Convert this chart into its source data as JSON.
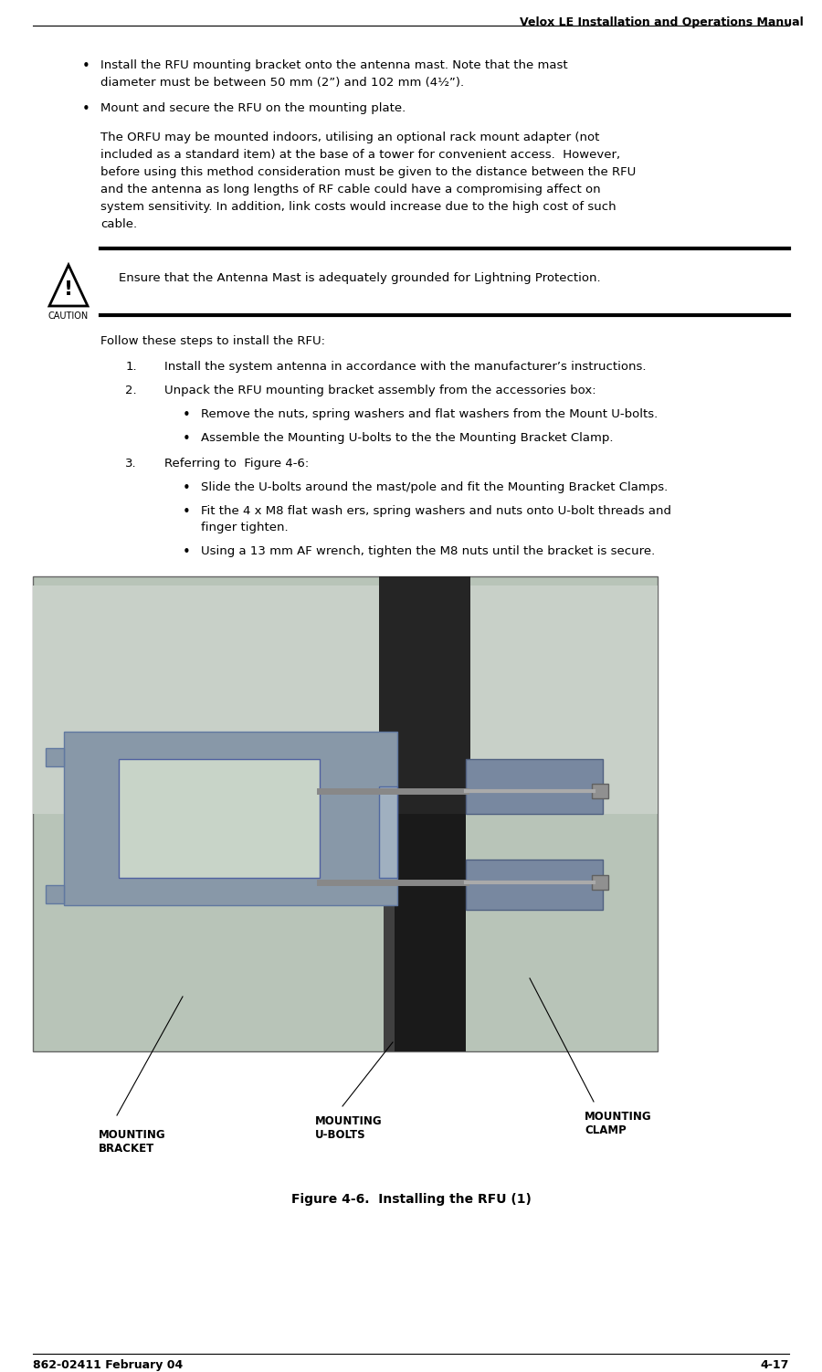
{
  "bg_color": "#ffffff",
  "header_text": "Velox LE Installation and Operations Manual",
  "footer_left": "862-02411 February 04",
  "footer_right": "4-17",
  "body_font_size": 9.5,
  "header_font_size": 9.0,
  "footer_font_size": 9.0,
  "caption_font_size": 10.0,
  "label_font_size": 8.5,
  "bullet1_line1": "Install the RFU mounting bracket onto the antenna mast. Note that the mast",
  "bullet1_line2": "diameter must be between 50 mm (2”) and 102 mm (4½”).",
  "bullet2": "Mount and secure the RFU on the mounting plate.",
  "para1_lines": [
    "The ORFU may be mounted indoors, utilising an optional rack mount adapter (not",
    "included as a standard item) at the base of a tower for convenient access.  However,",
    "before using this method consideration must be given to the distance between the RFU",
    "and the antenna as long lengths of RF cable could have a compromising affect on",
    "system sensitivity. In addition, link costs would increase due to the high cost of such",
    "cable."
  ],
  "caution_text": "Ensure that the Antenna Mast is adequately grounded for Lightning Protection.",
  "follow_text": "Follow these steps to install the RFU:",
  "step1": "Install the system antenna in accordance with the manufacturer’s instructions.",
  "step2_head": "Unpack the RFU mounting bracket assembly from the accessories box:",
  "step2_b1": "Remove the nuts, spring washers and flat washers from the Mount U-bolts.",
  "step2_b2": "Assemble the Mounting U-bolts to the the Mounting Bracket Clamp.",
  "step3_head": "Referring to  Figure 4-6:",
  "step3_b1": "Slide the U-bolts around the mast/pole and fit the Mounting Bracket Clamps.",
  "step3_b2a": "Fit the 4 x M8 flat wash ers, spring washers and nuts onto U-bolt threads and",
  "step3_b2b": "finger tighten.",
  "step3_b3": "Using a 13 mm AF wrench, tighten the M8 nuts until the bracket is secure.",
  "fig_caption": "Figure 4-6.  Installing the RFU (1)",
  "label1": "MOUNTING\nBRACKET",
  "label2": "MOUNTING\nU-BOLTS",
  "label3": "MOUNTING\nCLAMP",
  "photo_bg": "#b8c4b8",
  "photo_bg2": "#a8b4a8",
  "pole_dark": "#1a1a1a",
  "pole_mid": "#2a2a2a",
  "bracket_color": "#8898a8",
  "bracket_light": "#a0b0c0",
  "bracket_hole": "#c8d4c8",
  "clamp_color": "#7888a0",
  "bolt_color": "#909090"
}
